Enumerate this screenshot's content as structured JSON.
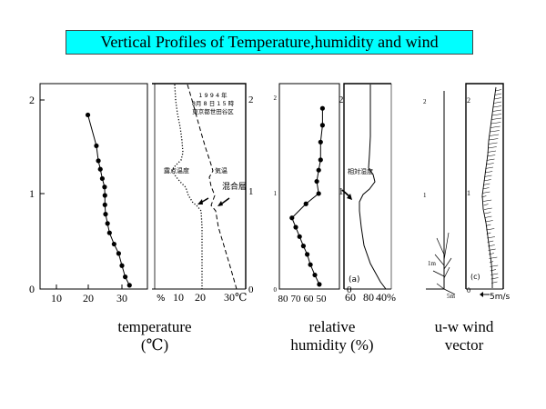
{
  "title": "Vertical Profiles of Temperature,humidity and wind",
  "captions": {
    "temperature_line1": "temperature",
    "temperature_line2": "(℃)",
    "humidity_line1": "relative",
    "humidity_line2": "humidity (%)",
    "wind_line1": "u-w wind",
    "wind_line2": "vector"
  },
  "temperature_plot": {
    "y_ticks": [
      "0",
      "1",
      "2"
    ],
    "x_ticks": [
      "10",
      "20",
      "30"
    ],
    "y_range_m": [
      0,
      2.2
    ],
    "x_range_c": [
      5,
      34
    ],
    "points": [
      {
        "t": 32.3,
        "z": 0.04
      },
      {
        "t": 31.0,
        "z": 0.13
      },
      {
        "t": 30.0,
        "z": 0.25
      },
      {
        "t": 29.0,
        "z": 0.38
      },
      {
        "t": 27.6,
        "z": 0.48
      },
      {
        "t": 26.2,
        "z": 0.6
      },
      {
        "t": 25.6,
        "z": 0.7
      },
      {
        "t": 25.0,
        "z": 0.8
      },
      {
        "t": 24.8,
        "z": 0.9
      },
      {
        "t": 24.8,
        "z": 1.0
      },
      {
        "t": 24.7,
        "z": 1.09
      },
      {
        "t": 24.0,
        "z": 1.18
      },
      {
        "t": 23.4,
        "z": 1.28
      },
      {
        "t": 22.8,
        "z": 1.37
      },
      {
        "t": 22.2,
        "z": 1.53
      },
      {
        "t": 19.6,
        "z": 1.86
      }
    ]
  },
  "temp_scan": {
    "x_ticks": [
      "%",
      "10",
      "20",
      "30℃"
    ],
    "right_ticks": [
      "0",
      "1",
      "2"
    ],
    "header_lines": [
      "1 9 9 4 年",
      "8月 8 日 1 5 時",
      "東京都世田谷区"
    ],
    "label_dew": "露点温度",
    "label_air": "気温",
    "label_mix": "混合層"
  },
  "humidity_plot": {
    "y_ticks": [
      "0",
      "1",
      "2"
    ],
    "x_ticks": [
      "80",
      "70",
      "60",
      "50"
    ],
    "x_range_pct": [
      85,
      47
    ],
    "points": [
      {
        "rh": 51.5,
        "z": 0.05
      },
      {
        "rh": 55.0,
        "z": 0.15
      },
      {
        "rh": 58.5,
        "z": 0.26
      },
      {
        "rh": 61.0,
        "z": 0.37
      },
      {
        "rh": 64.0,
        "z": 0.46
      },
      {
        "rh": 67.0,
        "z": 0.56
      },
      {
        "rh": 70.0,
        "z": 0.66
      },
      {
        "rh": 73.0,
        "z": 0.76
      },
      {
        "rh": 62.0,
        "z": 0.91
      },
      {
        "rh": 52.0,
        "z": 1.02
      },
      {
        "rh": 53.5,
        "z": 1.15
      },
      {
        "rh": 52.0,
        "z": 1.27
      },
      {
        "rh": 50.5,
        "z": 1.38
      },
      {
        "rh": 50.5,
        "z": 1.57
      },
      {
        "rh": 49.0,
        "z": 1.75
      },
      {
        "rh": 49.0,
        "z": 1.93
      }
    ]
  },
  "humidity_scan": {
    "x_ticks": [
      "60",
      "80",
      "40%"
    ],
    "panel_label": "(a)",
    "label_rh": "相対湿度"
  },
  "wind_left": {
    "y_ticks": [
      "1",
      "2"
    ],
    "scale_label": "1m",
    "scale_x_label": "5m"
  },
  "wind_scan": {
    "panel_label": "(c)",
    "scale_label": "5m/s"
  }
}
